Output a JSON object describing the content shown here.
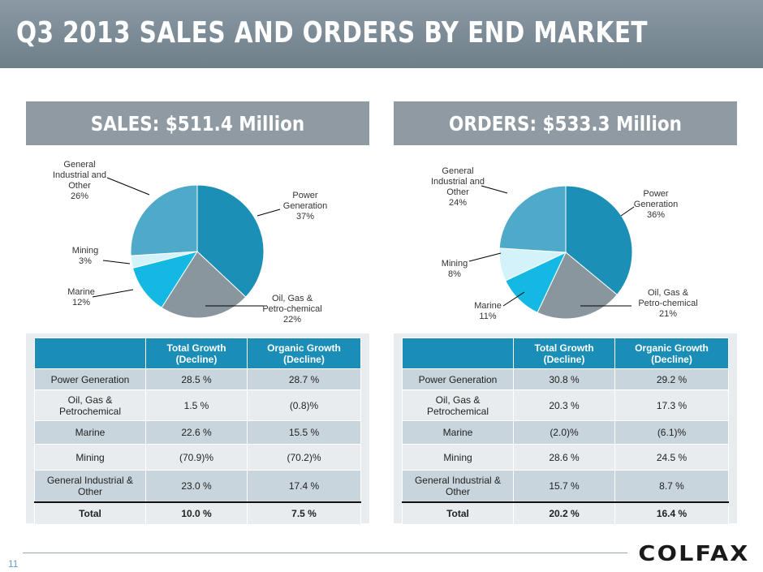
{
  "header": {
    "title": "Q3 2013 SALES AND ORDERS BY END MARKET"
  },
  "page_number": "11",
  "logo": {
    "text": "COLFAX"
  },
  "colors": {
    "power": "#1b8fb5",
    "oil": "#8a969e",
    "marine": "#14b9e3",
    "mining": "#d3f2fa",
    "general": "#4fa9c9",
    "table_header": "#1b8eb8"
  },
  "table_headers": {
    "col1": "Total Growth (Decline)",
    "col2": "Organic Growth (Decline)"
  },
  "chart_data": [
    {
      "type": "pie",
      "title": "SALES: $511.4 Million",
      "categories": [
        "Power Generation",
        "Oil, Gas & Petro-chemical",
        "Marine",
        "Mining",
        "General Industrial and Other"
      ],
      "values": [
        37,
        22,
        12,
        3,
        26
      ],
      "labels": [
        {
          "lines": [
            "Power",
            "Generation"
          ],
          "pct": "37%"
        },
        {
          "lines": [
            "Oil, Gas &",
            "Petro-chemical"
          ],
          "pct": "22%"
        },
        {
          "lines": [
            "Marine"
          ],
          "pct": "12%"
        },
        {
          "lines": [
            "Mining"
          ],
          "pct": "3%"
        },
        {
          "lines": [
            "General",
            "Industrial and",
            "Other"
          ],
          "pct": "26%"
        }
      ],
      "table": [
        {
          "segment": "Power Generation",
          "total": "28.5 %",
          "organic": "28.7 %"
        },
        {
          "segment": "Oil, Gas & Petrochemical",
          "total": "1.5 %",
          "organic": "(0.8)%"
        },
        {
          "segment": "Marine",
          "total": "22.6 %",
          "organic": "15.5 %"
        },
        {
          "segment": "Mining",
          "total": "(70.9)%",
          "organic": "(70.2)%"
        },
        {
          "segment": "General Industrial & Other",
          "total": "23.0 %",
          "organic": "17.4 %"
        },
        {
          "segment": "Total",
          "total": "10.0 %",
          "organic": "7.5 %"
        }
      ]
    },
    {
      "type": "pie",
      "title": "ORDERS: $533.3 Million",
      "categories": [
        "Power Generation",
        "Oil, Gas & Petro-chemical",
        "Marine",
        "Mining",
        "General Industrial and Other"
      ],
      "values": [
        36,
        21,
        11,
        8,
        24
      ],
      "labels": [
        {
          "lines": [
            "Power",
            "Generation"
          ],
          "pct": "36%"
        },
        {
          "lines": [
            "Oil, Gas &",
            "Petro-chemical"
          ],
          "pct": "21%"
        },
        {
          "lines": [
            "Marine"
          ],
          "pct": "11%"
        },
        {
          "lines": [
            "Mining"
          ],
          "pct": "8%"
        },
        {
          "lines": [
            "General",
            "Industrial and",
            "Other"
          ],
          "pct": "24%"
        }
      ],
      "table": [
        {
          "segment": "Power Generation",
          "total": "30.8 %",
          "organic": "29.2 %"
        },
        {
          "segment": "Oil, Gas & Petrochemical",
          "total": "20.3 %",
          "organic": "17.3 %"
        },
        {
          "segment": "Marine",
          "total": "(2.0)%",
          "organic": "(6.1)%"
        },
        {
          "segment": "Mining",
          "total": "28.6 %",
          "organic": "24.5 %"
        },
        {
          "segment": "General Industrial & Other",
          "total": "15.7 %",
          "organic": "8.7 %"
        },
        {
          "segment": "Total",
          "total": "20.2 %",
          "organic": "16.4 %"
        }
      ]
    }
  ]
}
